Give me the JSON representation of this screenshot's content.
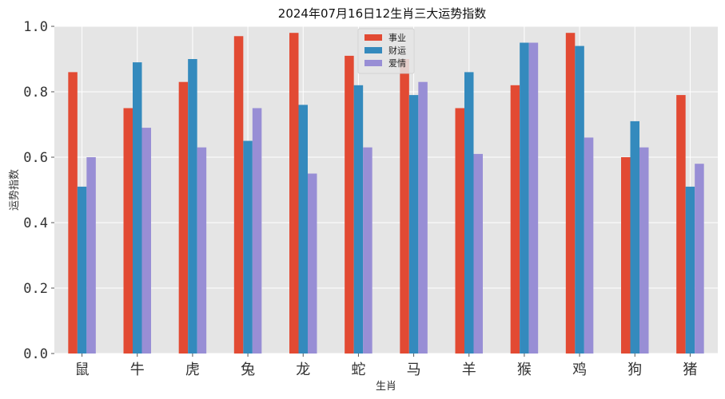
{
  "chart_data": {
    "type": "bar",
    "title": "2024年07月16日12生肖三大运势指数",
    "xlabel": "生肖",
    "ylabel": "运势指数",
    "categories": [
      "鼠",
      "牛",
      "虎",
      "兔",
      "龙",
      "蛇",
      "马",
      "羊",
      "猴",
      "鸡",
      "狗",
      "猪"
    ],
    "series": [
      {
        "name": "事业",
        "color": "#E24A33",
        "values": [
          0.86,
          0.75,
          0.83,
          0.97,
          0.98,
          0.91,
          0.9,
          0.75,
          0.82,
          0.98,
          0.6,
          0.79
        ]
      },
      {
        "name": "财运",
        "color": "#348ABD",
        "values": [
          0.51,
          0.89,
          0.9,
          0.65,
          0.76,
          0.82,
          0.79,
          0.86,
          0.95,
          0.94,
          0.71,
          0.51
        ]
      },
      {
        "name": "爱情",
        "color": "#988ED5",
        "values": [
          0.6,
          0.69,
          0.63,
          0.75,
          0.55,
          0.63,
          0.83,
          0.61,
          0.95,
          0.66,
          0.63,
          0.58
        ]
      }
    ],
    "ylim": [
      0,
      1.0
    ],
    "yticks": [
      "0.0",
      "0.2",
      "0.4",
      "0.6",
      "0.8",
      "1.0"
    ],
    "grid": true,
    "legend_position": "top-center",
    "background": "#E5E5E5",
    "grid_color": "#FFFFFF"
  }
}
